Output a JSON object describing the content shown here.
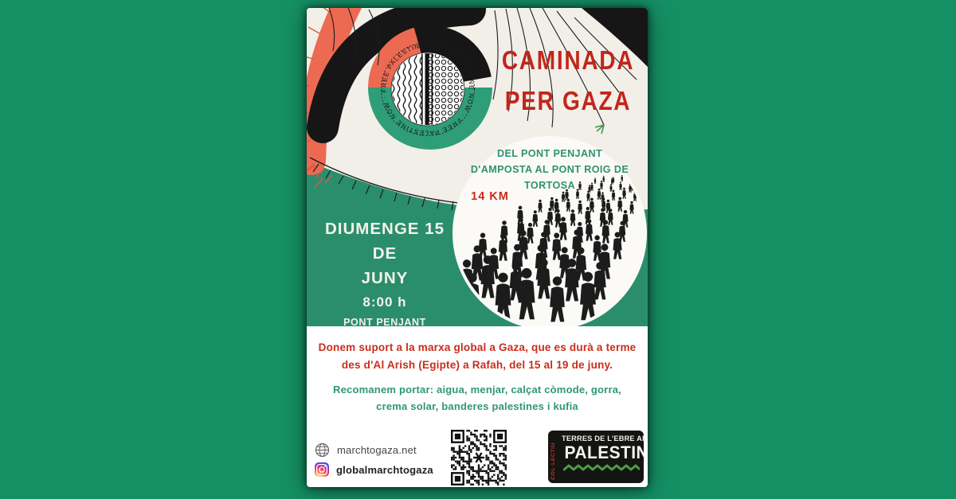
{
  "poster": {
    "title_line1": "CAMINADA",
    "title_line2": "PER GAZA",
    "route_line1": "DEL PONT PENJANT",
    "route_line2": "D'AMPOSTA AL PONT ROIG DE",
    "route_line3": "TORTOSA",
    "distance": "14 KM",
    "date_line1": "DIUMENGE 15 DE",
    "date_line2": "JUNY",
    "time": "8:00 h",
    "start_point": "PONT PENJANT D'AMPOSTA",
    "support_text": "Donem suport a la marxa global a Gaza, que es durà a terme des d'Al Arish (Egipte) a Rafah, del 15 al 19 de juny.",
    "bring_text": "Recomanem portar: aigua, menjar, calçat còmode, gorra, crema solar, banderes palestines i kufia",
    "eye_ring_text": "FREE PALESTINE NOW · FREE PALESTINE NOW · FREE PALESTINE ·"
  },
  "footer": {
    "website": "marchtogaza.net",
    "instagram": "globalmarchtogaza",
    "logo_vertical": "COL·LECTIU",
    "logo_line1": "TERRES DE L'EBRE AMB",
    "logo_line2": "PALESTINA"
  },
  "colors": {
    "background_green": "#159065",
    "poster_band_green": "#2a8e6d",
    "iris_green": "#2f9e78",
    "art_salmon": "#ec6a52",
    "title_red": "#c3251b",
    "body_red": "#c82d1c",
    "body_green": "#31967a",
    "ink_black": "#161616",
    "cream": "#f2efe8",
    "logo_red": "#c23b2a",
    "logo_leaf_green": "#4e9c40"
  }
}
